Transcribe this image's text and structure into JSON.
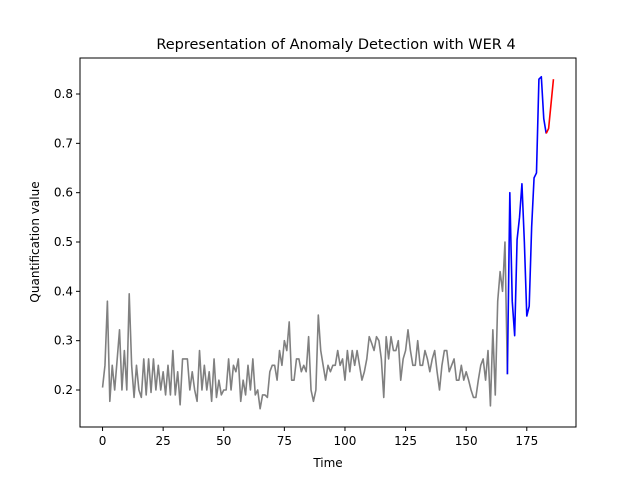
{
  "chart_data": {
    "type": "line",
    "title": "Representation of Anomaly Detection with WER 4",
    "xlabel": "Time",
    "ylabel": "Quantification value",
    "xlim": [
      -9.3,
      195.3
    ],
    "ylim": [
      0.125,
      0.873
    ],
    "xticks": [
      0,
      25,
      50,
      75,
      100,
      125,
      150,
      175
    ],
    "yticks": [
      0.2,
      0.3,
      0.4,
      0.5,
      0.6,
      0.7,
      0.8
    ],
    "grid": false,
    "series": [
      {
        "color": "#808080",
        "x": [
          0,
          1,
          2,
          3,
          4,
          5,
          6,
          7,
          8,
          9,
          10,
          11,
          12,
          13,
          14,
          15,
          16,
          17,
          18,
          19,
          20,
          21,
          22,
          23,
          24,
          25,
          26,
          27,
          28,
          29,
          30,
          31,
          32,
          33,
          34,
          35,
          36,
          37,
          38,
          39,
          40,
          41,
          42,
          43,
          44,
          45,
          46,
          47,
          48,
          49,
          50,
          51,
          52,
          53,
          54,
          55,
          56,
          57,
          58,
          59,
          60,
          61,
          62,
          63,
          64,
          65,
          66,
          67,
          68,
          69,
          70,
          71,
          72,
          73,
          74,
          75,
          76,
          77,
          78,
          79,
          80,
          81,
          82,
          83,
          84,
          85,
          86,
          87,
          88,
          89,
          90,
          91,
          92,
          93,
          94,
          95,
          96,
          97,
          98,
          99,
          100,
          101,
          102,
          103,
          104,
          105,
          106,
          107,
          108,
          109,
          110,
          111,
          112,
          113,
          114,
          115,
          116,
          117,
          118,
          119,
          120,
          121,
          122,
          123,
          124,
          125,
          126,
          127,
          128,
          129,
          130,
          131,
          132,
          133,
          134,
          135,
          136,
          137,
          138,
          139,
          140,
          141,
          142,
          143,
          144,
          145,
          146,
          147,
          148,
          149,
          150,
          151,
          152,
          153,
          154,
          155,
          156,
          157,
          158,
          159,
          160,
          161,
          162,
          163,
          164,
          165,
          166,
          167
        ],
        "y": [
          0.205,
          0.25,
          0.38,
          0.177,
          0.25,
          0.2,
          0.26,
          0.322,
          0.2,
          0.28,
          0.2,
          0.395,
          0.25,
          0.185,
          0.25,
          0.2,
          0.185,
          0.263,
          0.19,
          0.263,
          0.195,
          0.263,
          0.2,
          0.25,
          0.2,
          0.237,
          0.19,
          0.25,
          0.19,
          0.28,
          0.19,
          0.237,
          0.17,
          0.263,
          0.263,
          0.263,
          0.2,
          0.237,
          0.2,
          0.177,
          0.28,
          0.2,
          0.25,
          0.2,
          0.237,
          0.177,
          0.263,
          0.185,
          0.22,
          0.19,
          0.2,
          0.2,
          0.263,
          0.2,
          0.25,
          0.237,
          0.263,
          0.177,
          0.22,
          0.19,
          0.25,
          0.2,
          0.263,
          0.19,
          0.2,
          0.162,
          0.19,
          0.19,
          0.185,
          0.237,
          0.25,
          0.25,
          0.22,
          0.28,
          0.25,
          0.3,
          0.28,
          0.338,
          0.22,
          0.22,
          0.263,
          0.263,
          0.237,
          0.25,
          0.237,
          0.308,
          0.2,
          0.177,
          0.2,
          0.352,
          0.28,
          0.25,
          0.22,
          0.25,
          0.237,
          0.25,
          0.25,
          0.28,
          0.25,
          0.263,
          0.22,
          0.28,
          0.237,
          0.28,
          0.25,
          0.28,
          0.25,
          0.22,
          0.237,
          0.263,
          0.308,
          0.295,
          0.28,
          0.308,
          0.3,
          0.263,
          0.185,
          0.308,
          0.263,
          0.308,
          0.28,
          0.28,
          0.3,
          0.22,
          0.263,
          0.28,
          0.322,
          0.28,
          0.25,
          0.25,
          0.3,
          0.25,
          0.25,
          0.28,
          0.263,
          0.237,
          0.263,
          0.28,
          0.237,
          0.2,
          0.25,
          0.28,
          0.28,
          0.237,
          0.25,
          0.263,
          0.22,
          0.22,
          0.25,
          0.22,
          0.237,
          0.22,
          0.2,
          0.185,
          0.185,
          0.22,
          0.25,
          0.263,
          0.22,
          0.28,
          0.168,
          0.322,
          0.19,
          0.38,
          0.44,
          0.4,
          0.5,
          0.232
        ],
        "style": "solid"
      },
      {
        "color": "#0000ff",
        "x": [
          167,
          168,
          169,
          170,
          171,
          172,
          173,
          174,
          175,
          176,
          177,
          178,
          179,
          180,
          181,
          182,
          183
        ],
        "y": [
          0.232,
          0.6,
          0.38,
          0.31,
          0.505,
          0.55,
          0.618,
          0.5,
          0.35,
          0.37,
          0.53,
          0.63,
          0.64,
          0.83,
          0.835,
          0.75,
          0.72
        ],
        "style": "solid"
      },
      {
        "color": "#ff0000",
        "x": [
          183,
          184,
          185,
          186
        ],
        "y": [
          0.72,
          0.73,
          0.78,
          0.83
        ],
        "style": "solid"
      }
    ]
  }
}
